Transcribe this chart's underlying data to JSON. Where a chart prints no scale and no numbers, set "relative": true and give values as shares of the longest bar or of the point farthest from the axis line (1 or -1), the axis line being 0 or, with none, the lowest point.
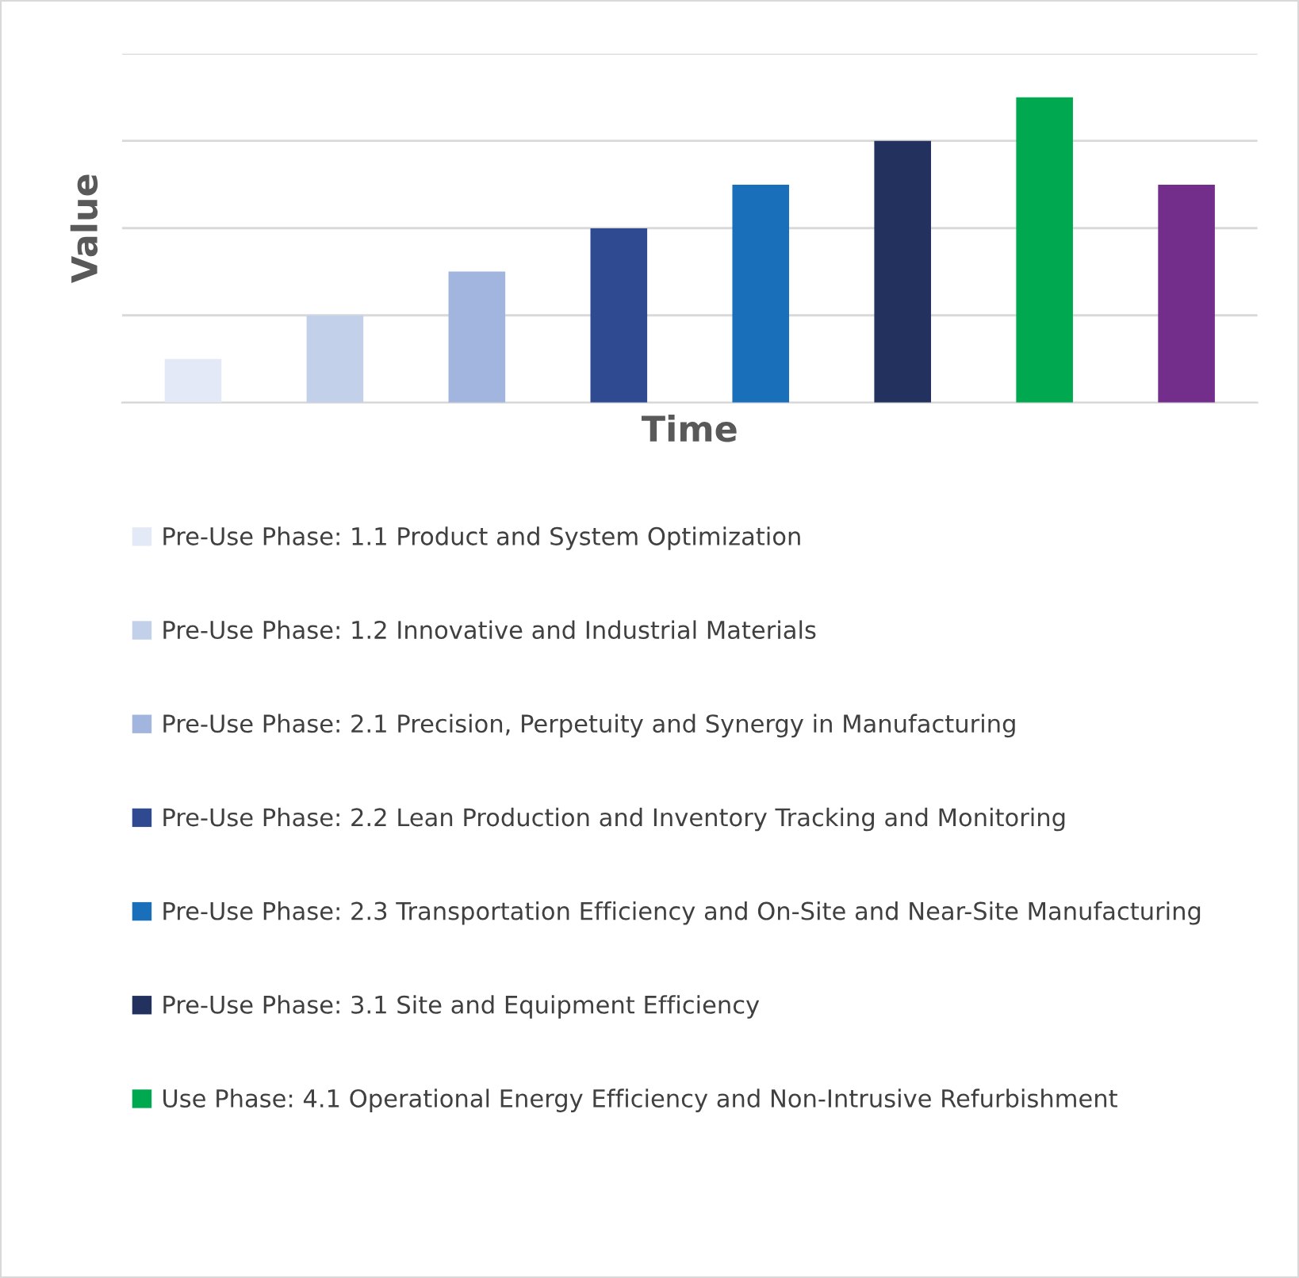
{
  "chart_data": {
    "type": "bar",
    "xlabel": "Time",
    "ylabel": "Value",
    "relative": true,
    "stacked": true,
    "grid": "y",
    "legend": "bottom",
    "categories": [
      null,
      null,
      null,
      null,
      null,
      null,
      null,
      null
    ],
    "series": [
      {
        "name": "Pre-Use Phase: 1.1 Product and System Optimization",
        "color": "#e3e9f6",
        "values": [
          0.143,
          null,
          null,
          null,
          null,
          null,
          null,
          null
        ]
      },
      {
        "name": "Pre-Use Phase: 1.2 Innovative and Industrial Materials",
        "color": "#c3d0ea",
        "values": [
          null,
          0.286,
          null,
          null,
          null,
          null,
          null,
          null
        ]
      },
      {
        "name": "Pre-Use Phase: 2.1 Precision, Perpetuity and Synergy in Manufacturing",
        "color": "#a2b5de",
        "values": [
          null,
          null,
          0.429,
          null,
          null,
          null,
          null,
          null
        ]
      },
      {
        "name": "Pre-Use Phase: 2.2 Lean Production and Inventory Tracking and Monitoring",
        "color": "#2f4a91",
        "values": [
          null,
          null,
          null,
          0.571,
          null,
          null,
          null,
          null
        ]
      },
      {
        "name": "Pre-Use Phase: 2.3 Transportation Efficiency and On-Site and Near-Site Manufacturing",
        "color": "#1a6fbb",
        "values": [
          null,
          null,
          null,
          null,
          0.714,
          null,
          null,
          null
        ]
      },
      {
        "name": "Pre-Use Phase: 3.1 Site and Equipment Efficiency",
        "color": "#22315e",
        "values": [
          null,
          null,
          null,
          null,
          null,
          0.857,
          null,
          null
        ]
      },
      {
        "name": "Use Phase: 4.1 Operational Energy Efficiency and Non-Intrusive Refurbishment",
        "color": "#00a94f",
        "values": [
          null,
          null,
          null,
          null,
          null,
          null,
          1,
          null
        ]
      },
      {
        "color": "#722e8a",
        "values": [
          null,
          null,
          null,
          null,
          null,
          null,
          null,
          0.714
        ]
      }
    ]
  }
}
